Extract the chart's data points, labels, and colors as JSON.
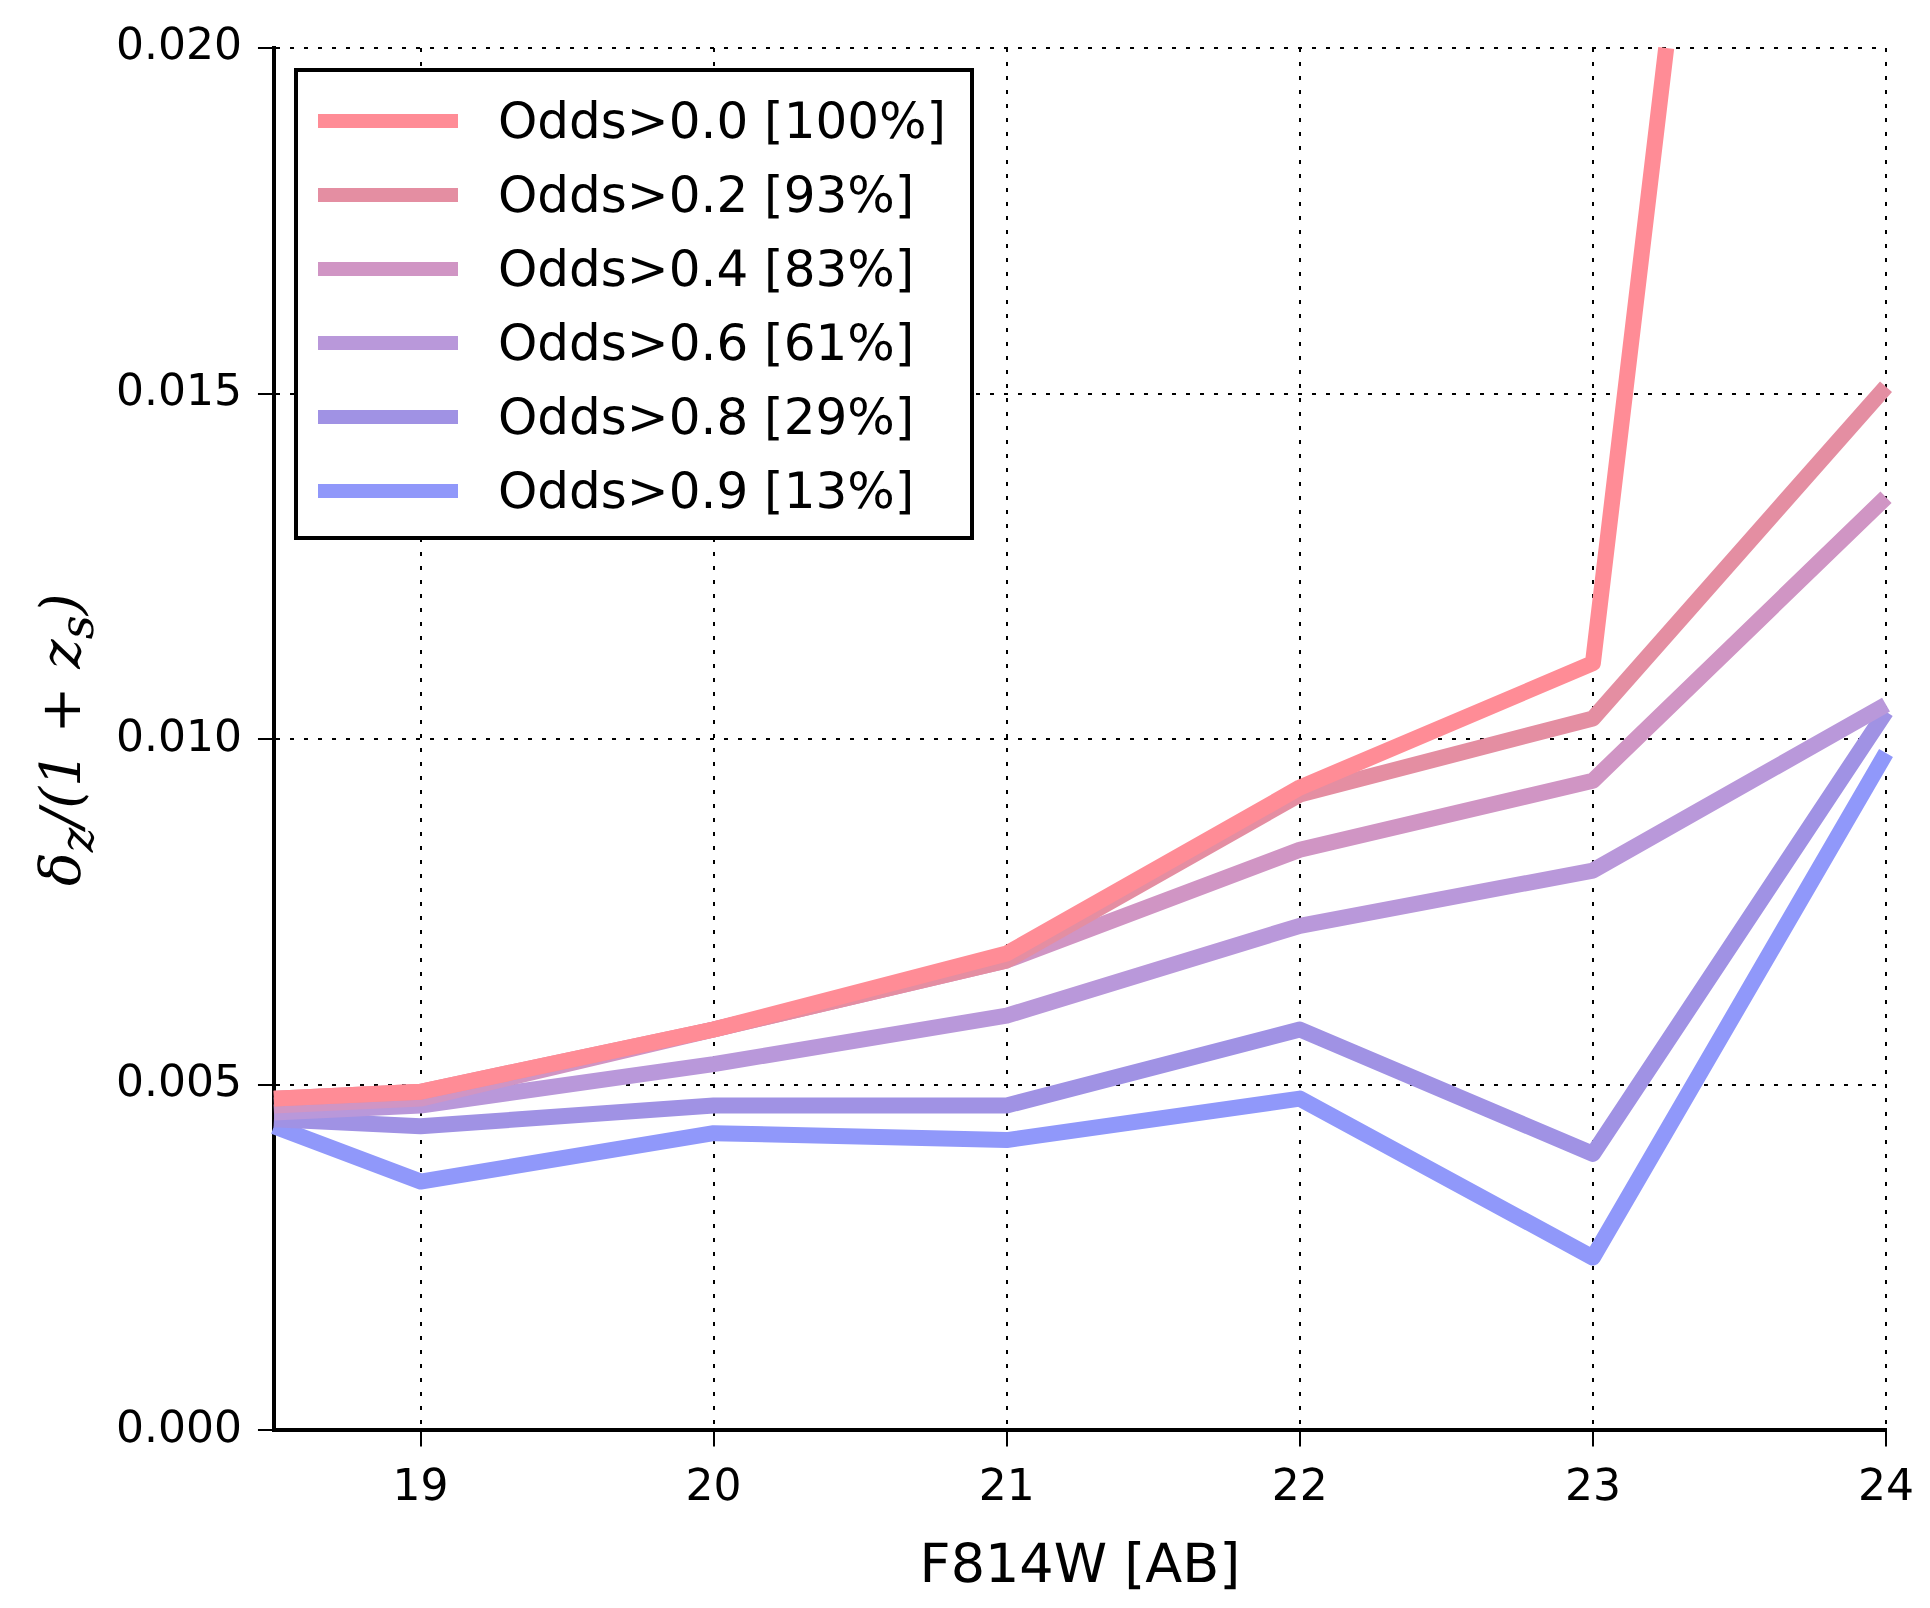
{
  "chart_data": {
    "type": "line",
    "xlabel": "F814W [AB]",
    "ylabel": "δ$_{z}$/(1 + z$_{s}$)",
    "x": [
      18.5,
      19,
      20,
      21,
      22,
      23,
      24
    ],
    "series": [
      {
        "name": "Odds>0.0 [100%]",
        "color": "#ff8c96",
        "x": [
          18.5,
          19,
          20,
          21,
          22,
          23,
          23.25
        ],
        "values": [
          0.0048,
          0.0049,
          0.0058,
          0.0069,
          0.0093,
          0.0111,
          0.02
        ]
      },
      {
        "name": "Odds>0.2 [93%]",
        "color": "#e48ea2",
        "values": [
          0.0048,
          0.0049,
          0.0058,
          0.0068,
          0.0092,
          0.0103,
          0.0151
        ]
      },
      {
        "name": "Odds>0.4 [83%]",
        "color": "#d095c4",
        "values": [
          0.0047,
          0.0048,
          0.0058,
          0.0068,
          0.0084,
          0.0094,
          0.0135
        ]
      },
      {
        "name": "Odds>0.6 [61%]",
        "color": "#b998da",
        "values": [
          0.0046,
          0.0047,
          0.0053,
          0.006,
          0.0073,
          0.0081,
          0.0105
        ]
      },
      {
        "name": "Odds>0.8 [29%]",
        "color": "#a092e4",
        "values": [
          0.0045,
          0.0044,
          0.0047,
          0.0047,
          0.0058,
          0.004,
          0.0104
        ]
      },
      {
        "name": "Odds>0.9 [13%]",
        "color": "#9098fa",
        "values": [
          0.0044,
          0.0036,
          0.0043,
          0.0042,
          0.0048,
          0.0025,
          0.0098
        ]
      }
    ],
    "xlim": [
      18.5,
      24
    ],
    "xticks": [
      19,
      20,
      21,
      22,
      23,
      24
    ],
    "ylim": [
      0,
      0.02
    ],
    "yticks": [
      {
        "value": 0,
        "label": "0.000"
      },
      0.005,
      {
        "value": 0.01,
        "label": "0.010"
      },
      0.015,
      {
        "value": 0.02,
        "label": "0.020"
      }
    ],
    "grid": true,
    "legend": "top left",
    "marker": "none",
    "line_style": "solid"
  }
}
